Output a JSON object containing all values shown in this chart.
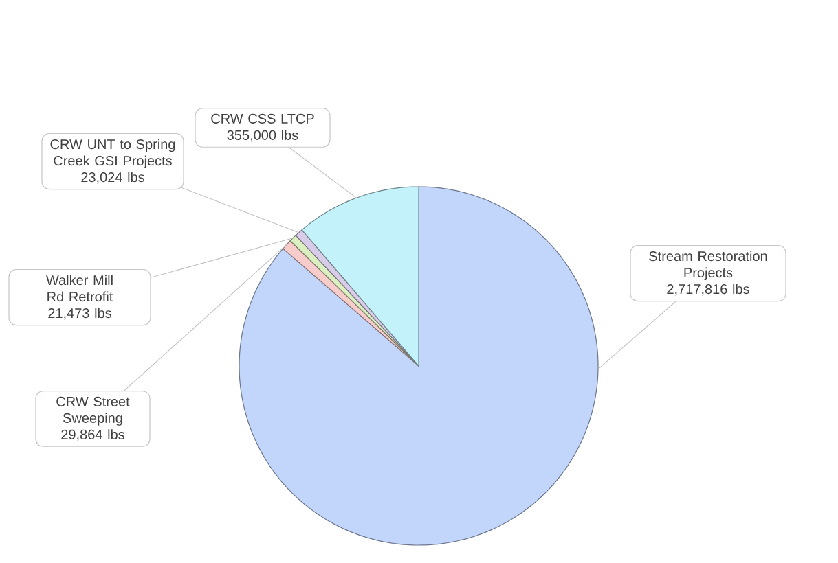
{
  "chart_data": {
    "type": "pie",
    "categories": [
      "Stream Restoration Projects",
      "CRW Street Sweeping",
      "Walker Mill Rd Retrofit",
      "CRW UNT to Spring Creek GSI Projects",
      "CRW CSS LTCP"
    ],
    "values": [
      2717816,
      29864,
      21473,
      23024,
      355000
    ],
    "value_labels": [
      "2,717,816 lbs",
      "29,864 lbs",
      "21,473 lbs",
      "23,024 lbs",
      "355,000 lbs"
    ],
    "colors": [
      "#c2d5fb",
      "#f9cccc",
      "#dcefc0",
      "#d9cce8",
      "#c4f2fa"
    ],
    "legend": false
  }
}
